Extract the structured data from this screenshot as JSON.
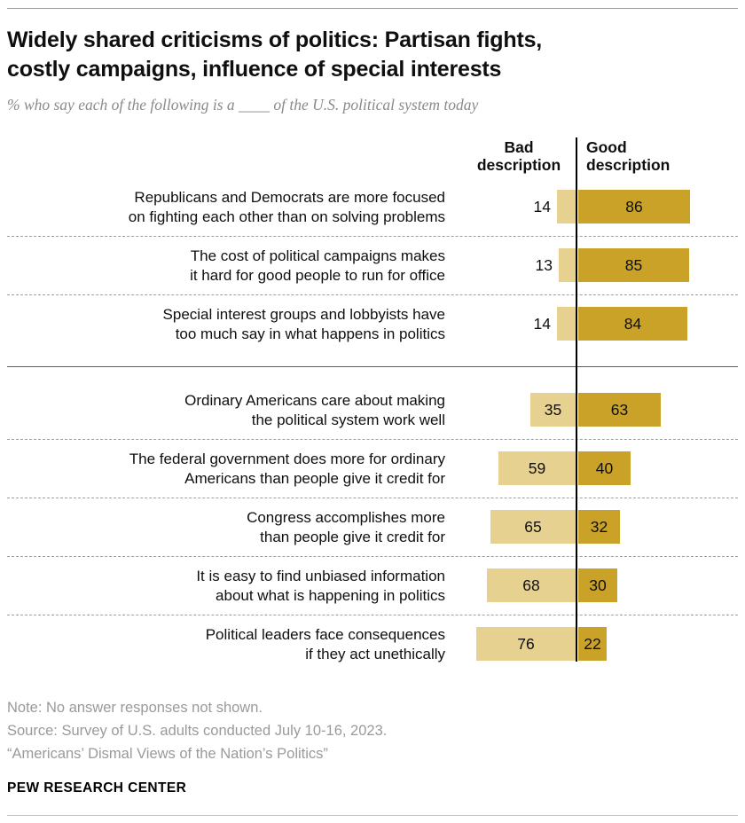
{
  "page": {
    "title_lines": [
      "Widely shared criticisms of politics: Partisan fights,",
      "costly campaigns, influence of special interests"
    ],
    "subtitle": "% who say each of the following is a ____ of the U.S. political system today",
    "notes": [
      "Note: No answer responses not shown.",
      "Source: Survey of U.S. adults conducted July 10-16, 2023.",
      "“Americans’ Dismal Views of the Nation’s Politics”"
    ],
    "footer": "PEW RESEARCH CENTER"
  },
  "chart_data": {
    "type": "bar",
    "orientation": "horizontal-diverging",
    "title": "Widely shared criticisms of politics: Partisan fights, costly campaigns, influence of special interests",
    "value_unit": "percent",
    "xlim": [
      0,
      100
    ],
    "column_headers": {
      "bad": "Bad description",
      "good": "Good description"
    },
    "colors": {
      "bad": "#E6D190",
      "good": "#C9A227"
    },
    "rows": [
      {
        "label": [
          "Republicans and Democrats are more focused",
          "on fighting each other than on solving problems"
        ],
        "bad": 14,
        "good": 86,
        "group": 1
      },
      {
        "label": [
          "The cost of political campaigns makes",
          "it hard for good people to run for office"
        ],
        "bad": 13,
        "good": 85,
        "group": 1
      },
      {
        "label": [
          "Special interest groups and lobbyists have",
          "too much say in what happens in politics"
        ],
        "bad": 14,
        "good": 84,
        "group": 1
      },
      {
        "label": [
          "Ordinary Americans care about making",
          "the political system work well"
        ],
        "bad": 35,
        "good": 63,
        "group": 2
      },
      {
        "label": [
          "The federal government does more for ordinary",
          "Americans than people give it credit for"
        ],
        "bad": 59,
        "good": 40,
        "group": 2
      },
      {
        "label": [
          "Congress accomplishes more",
          "than people give it credit for"
        ],
        "bad": 65,
        "good": 32,
        "group": 2
      },
      {
        "label": [
          "It is easy to find unbiased information",
          "about what is happening in politics"
        ],
        "bad": 68,
        "good": 30,
        "group": 2
      },
      {
        "label": [
          "Political leaders face consequences",
          "if they act unethically"
        ],
        "bad": 76,
        "good": 22,
        "group": 2
      }
    ]
  }
}
